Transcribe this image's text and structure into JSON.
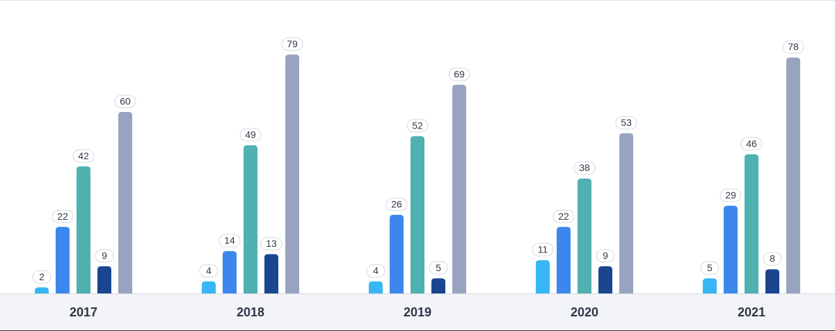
{
  "chart_data": {
    "type": "bar",
    "categories": [
      "2017",
      "2018",
      "2019",
      "2020",
      "2021"
    ],
    "series": [
      {
        "color": "#38b6f5",
        "values": [
          2,
          4,
          4,
          11,
          5
        ]
      },
      {
        "color": "#3d87ec",
        "values": [
          22,
          14,
          26,
          22,
          29
        ]
      },
      {
        "color": "#4fb1b0",
        "values": [
          42,
          49,
          52,
          38,
          46
        ]
      },
      {
        "color": "#1a4690",
        "values": [
          9,
          13,
          5,
          9,
          8
        ]
      },
      {
        "color": "#98a4bf",
        "values": [
          60,
          79,
          69,
          53,
          78
        ]
      }
    ],
    "ylim": [
      0,
      80
    ],
    "grid": false,
    "legend": "none",
    "data_labels": true
  }
}
